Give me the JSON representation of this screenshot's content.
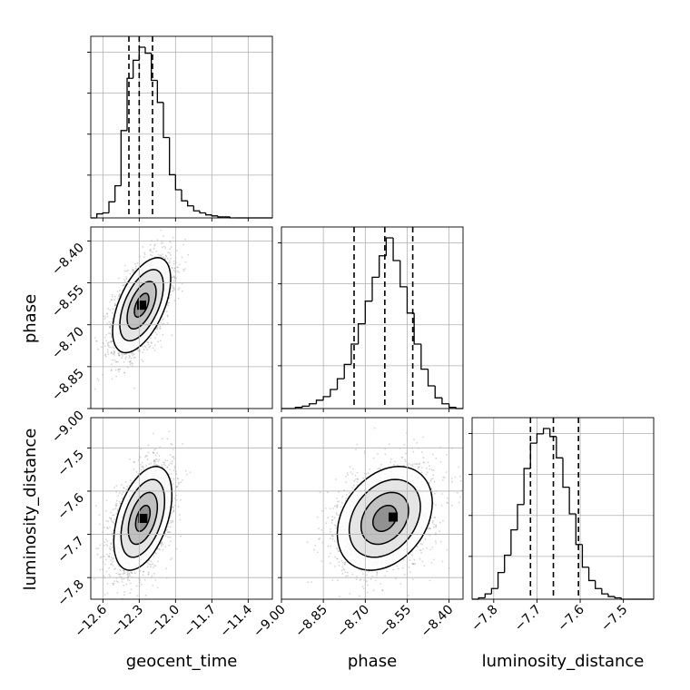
{
  "chart_data": {
    "type": "corner",
    "parameters": [
      "geocent_time",
      "phase",
      "luminosity_distance"
    ],
    "axes": {
      "geocent_time": {
        "range": [
          -12.7,
          -11.2
        ],
        "ticks": [
          -12.6,
          -12.3,
          -12.0,
          -11.7,
          -11.4
        ],
        "tick_labels": [
          "−12.6",
          "−12.3",
          "−12.0",
          "−11.7",
          "−11.4"
        ]
      },
      "phase": {
        "range": [
          -9.0,
          -8.35
        ],
        "ticks": [
          -9.0,
          -8.85,
          -8.7,
          -8.55,
          -8.4
        ],
        "tick_labels": [
          "−9.00",
          "−8.85",
          "−8.70",
          "−8.55",
          "−8.40"
        ]
      },
      "luminosity_distance": {
        "range": [
          -7.85,
          -7.43
        ],
        "ticks": [
          -7.8,
          -7.7,
          -7.6,
          -7.5
        ],
        "tick_labels": [
          "−7.8",
          "−7.7",
          "−7.6",
          "−7.5"
        ]
      }
    },
    "grid": true,
    "histograms": [
      {
        "parameter": "geocent_time",
        "bin_edges": [
          -12.7,
          -12.65,
          -12.6,
          -12.55,
          -12.5,
          -12.45,
          -12.4,
          -12.35,
          -12.3,
          -12.25,
          -12.2,
          -12.15,
          -12.1,
          -12.05,
          -12.0,
          -11.95,
          -11.9,
          -11.85,
          -11.8,
          -11.75,
          -11.7,
          -11.65,
          -11.6,
          -11.55,
          -11.5,
          -11.45,
          -11.4,
          -11.35,
          -11.3,
          -11.25,
          -11.2
        ],
        "counts": [
          0,
          4,
          5,
          16,
          32,
          87,
          139,
          157,
          170,
          164,
          137,
          115,
          80,
          43,
          28,
          17,
          12,
          7,
          5,
          3,
          2,
          1,
          1,
          0,
          0,
          0,
          0,
          0,
          0,
          0
        ],
        "quantiles": [
          -12.385,
          -12.3,
          -12.19
        ]
      },
      {
        "parameter": "phase",
        "bin_edges": [
          -9.0,
          -8.975,
          -8.95,
          -8.925,
          -8.9,
          -8.875,
          -8.85,
          -8.825,
          -8.8,
          -8.775,
          -8.75,
          -8.725,
          -8.7,
          -8.675,
          -8.65,
          -8.625,
          -8.6,
          -8.575,
          -8.55,
          -8.525,
          -8.5,
          -8.475,
          -8.45,
          -8.425,
          -8.4,
          -8.375,
          -8.35
        ],
        "counts": [
          0,
          0,
          1,
          2,
          4,
          7,
          10,
          16,
          25,
          37,
          54,
          71,
          90,
          110,
          128,
          143,
          124,
          102,
          80,
          54,
          33,
          19,
          9,
          4,
          1,
          0
        ],
        "quantiles": [
          -8.74,
          -8.63,
          -8.53
        ]
      },
      {
        "parameter": "luminosity_distance",
        "bin_edges": [
          -7.85,
          -7.835,
          -7.82,
          -7.805,
          -7.79,
          -7.775,
          -7.76,
          -7.745,
          -7.73,
          -7.715,
          -7.7,
          -7.685,
          -7.67,
          -7.655,
          -7.64,
          -7.625,
          -7.61,
          -7.595,
          -7.58,
          -7.565,
          -7.55,
          -7.535,
          -7.52,
          -7.505,
          -7.49,
          -7.475,
          -7.46,
          -7.445,
          -7.43
        ],
        "counts": [
          0,
          1,
          4,
          8,
          20,
          33,
          52,
          71,
          98,
          117,
          124,
          128,
          122,
          106,
          84,
          64,
          41,
          24,
          14,
          8,
          4,
          2,
          1,
          0,
          0,
          0,
          0,
          0
        ],
        "quantiles": [
          -7.715,
          -7.662,
          -7.604
        ]
      }
    ],
    "scatter_2d": [
      {
        "x": "geocent_time",
        "y": "phase",
        "center": [
          -12.28,
          -8.63
        ],
        "sigma": [
          0.12,
          0.085
        ],
        "correlation": 0.55,
        "contour_levels_sigma": [
          0.5,
          1.0,
          1.5,
          2.0
        ],
        "peak": [
          -12.28,
          -8.63
        ]
      },
      {
        "x": "geocent_time",
        "y": "luminosity_distance",
        "center": [
          -12.27,
          -7.663
        ],
        "sigma": [
          0.12,
          0.06
        ],
        "correlation": 0.45,
        "contour_levels_sigma": [
          0.5,
          1.0,
          1.5,
          2.0
        ],
        "peak": [
          -12.27,
          -7.663
        ]
      },
      {
        "x": "phase",
        "y": "luminosity_distance",
        "center": [
          -8.63,
          -7.663
        ],
        "sigma": [
          0.085,
          0.06
        ],
        "correlation": 0.3,
        "contour_levels_sigma": [
          0.5,
          1.0,
          1.5,
          2.0
        ],
        "peak": [
          -8.6,
          -7.66
        ]
      }
    ]
  }
}
